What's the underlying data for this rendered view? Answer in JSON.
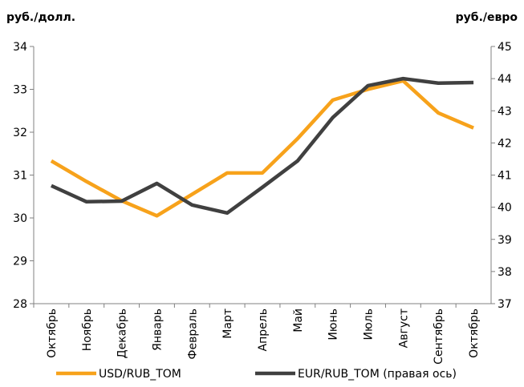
{
  "chart_data": {
    "type": "line",
    "y_label": "руб./долл.",
    "y2_label": "руб./евро",
    "categories": [
      "Октябрь",
      "Ноябрь",
      "Декабрь",
      "Январь",
      "Февраль",
      "Март",
      "Апрель",
      "Май",
      "Июнь",
      "Июль",
      "Август",
      "Сентябрь",
      "Октябрь"
    ],
    "ylim": [
      28,
      34
    ],
    "yticks": [
      28,
      29,
      30,
      31,
      32,
      33,
      34
    ],
    "y2lim": [
      37,
      45
    ],
    "y2ticks": [
      37,
      38,
      39,
      40,
      41,
      42,
      43,
      44,
      45
    ],
    "series": [
      {
        "name": "USD/RUB_TOM",
        "color": "#f7a21b",
        "values": [
          31.33,
          30.85,
          30.4,
          30.05,
          30.55,
          31.05,
          31.05,
          31.85,
          32.75,
          33.0,
          33.2,
          32.45,
          32.1
        ]
      },
      {
        "name": "EUR/RUB_TOM (правая ось)",
        "color": "#404040",
        "axis": "y2",
        "values": [
          40.67,
          40.17,
          40.19,
          40.74,
          40.07,
          39.82,
          40.62,
          41.44,
          42.79,
          43.78,
          44.0,
          43.86,
          43.88
        ]
      }
    ]
  }
}
